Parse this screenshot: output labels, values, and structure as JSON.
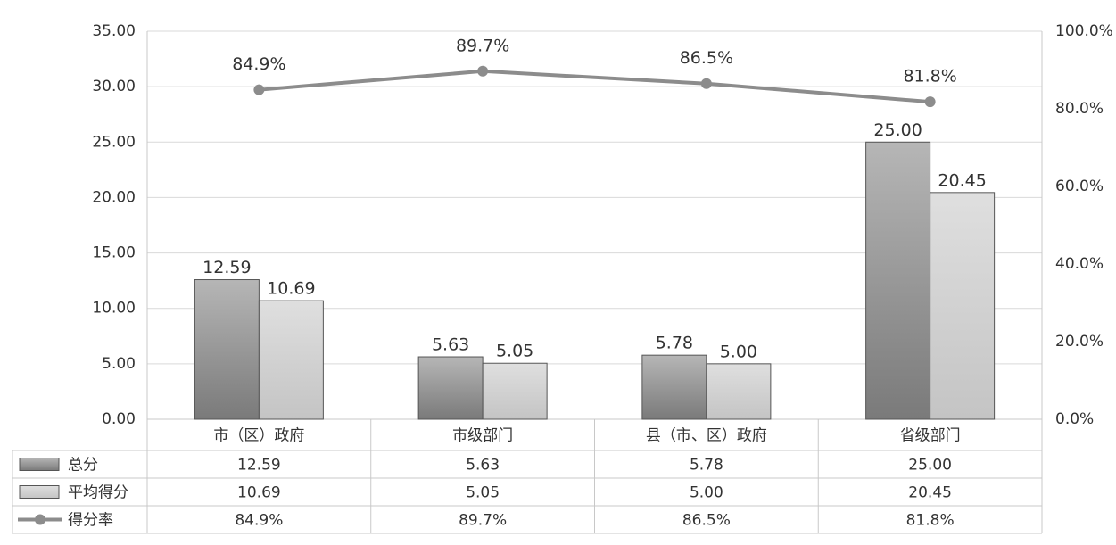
{
  "chart_data": {
    "type": "bar",
    "categories": [
      "市（区）政府",
      "市级部门",
      "县（市、区）政府",
      "省级部门"
    ],
    "series": [
      {
        "name": "总分",
        "type": "bar",
        "color": "#7a7a7a",
        "values": [
          12.59,
          5.63,
          5.78,
          25.0
        ],
        "value_labels": [
          "12.59",
          "5.63",
          "5.78",
          "25.00"
        ]
      },
      {
        "name": "平均得分",
        "type": "bar",
        "color": "#c4c4c4",
        "values": [
          10.69,
          5.05,
          5.0,
          20.45
        ],
        "value_labels": [
          "10.69",
          "5.05",
          "5.00",
          "20.45"
        ]
      },
      {
        "name": "得分率",
        "type": "line",
        "axis": "y2",
        "color": "#8c8c8c",
        "values": [
          84.9,
          89.7,
          86.5,
          81.8
        ],
        "value_labels": [
          "84.9%",
          "89.7%",
          "86.5%",
          "81.8%"
        ]
      }
    ],
    "ylim": [
      0,
      35
    ],
    "yticks": [
      {
        "value": 0,
        "label": "0.00"
      },
      {
        "value": 5,
        "label": "5.00"
      },
      {
        "value": 10,
        "label": "10.00"
      },
      {
        "value": 15,
        "label": "15.00"
      },
      {
        "value": 20,
        "label": "20.00"
      },
      {
        "value": 25,
        "label": "25.00"
      },
      {
        "value": 30,
        "label": "30.00"
      },
      {
        "value": 35,
        "label": "35.00"
      }
    ],
    "y2lim": [
      0,
      100
    ],
    "y2ticks": [
      {
        "value": 0,
        "label": "0.0%"
      },
      {
        "value": 20,
        "label": "20.0%"
      },
      {
        "value": 40,
        "label": "40.0%"
      },
      {
        "value": 60,
        "label": "60.0%"
      },
      {
        "value": 80,
        "label": "80.0%"
      },
      {
        "value": 100,
        "label": "100.0%"
      }
    ],
    "grid": true,
    "data_table": true
  }
}
